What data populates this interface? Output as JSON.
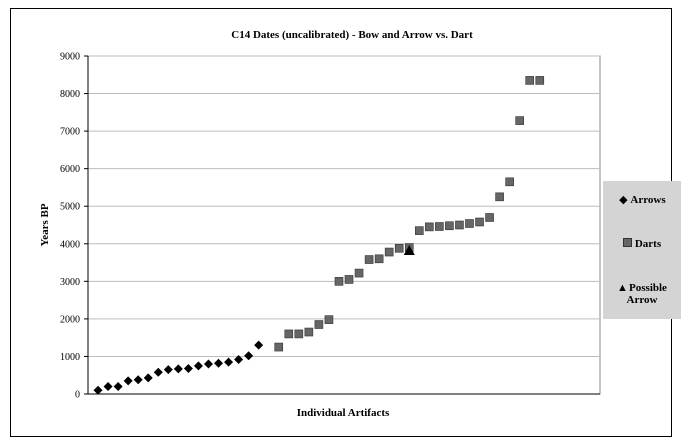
{
  "chart_data": {
    "type": "scatter",
    "title": "C14 Dates (uncalibrated) - Bow and Arrow vs. Dart",
    "xlabel": "Individual Artifacts",
    "ylabel": "Years BP",
    "ylim": [
      0,
      9000
    ],
    "yticks": [
      0,
      1000,
      2000,
      3000,
      4000,
      5000,
      6000,
      7000,
      8000,
      9000
    ],
    "grid": true,
    "legend_position": "right",
    "series": [
      {
        "name": "Arrows",
        "marker": "diamond",
        "color": "#000000",
        "x": [
          1,
          2,
          3,
          4,
          5,
          6,
          7,
          8,
          9,
          10,
          11,
          12,
          13,
          14,
          15,
          16,
          17
        ],
        "y": [
          100,
          200,
          200,
          350,
          380,
          430,
          580,
          650,
          670,
          680,
          750,
          800,
          820,
          850,
          920,
          1020,
          1300
        ]
      },
      {
        "name": "Darts",
        "marker": "square",
        "color": "#666666",
        "x": [
          19,
          20,
          21,
          22,
          23,
          24,
          25,
          26,
          27,
          28,
          29,
          30,
          31,
          32,
          33,
          34,
          35,
          36,
          37,
          38,
          39,
          40,
          41,
          42,
          43,
          44,
          45
        ],
        "y": [
          1250,
          1600,
          1600,
          1650,
          1850,
          1980,
          3000,
          3050,
          3220,
          3580,
          3600,
          3780,
          3880,
          3900,
          4350,
          4450,
          4460,
          4480,
          4500,
          4540,
          4580,
          4700,
          5250,
          5650,
          7280,
          8350,
          8350
        ]
      },
      {
        "name": "Possible Arrow",
        "marker": "triangle",
        "color": "#000000",
        "x": [
          32
        ],
        "y": [
          3820
        ]
      }
    ]
  },
  "legend": {
    "arrows_label": "Arrows",
    "darts_label": "Darts",
    "possible_line1": "Possible",
    "possible_line2": "Arrow"
  }
}
